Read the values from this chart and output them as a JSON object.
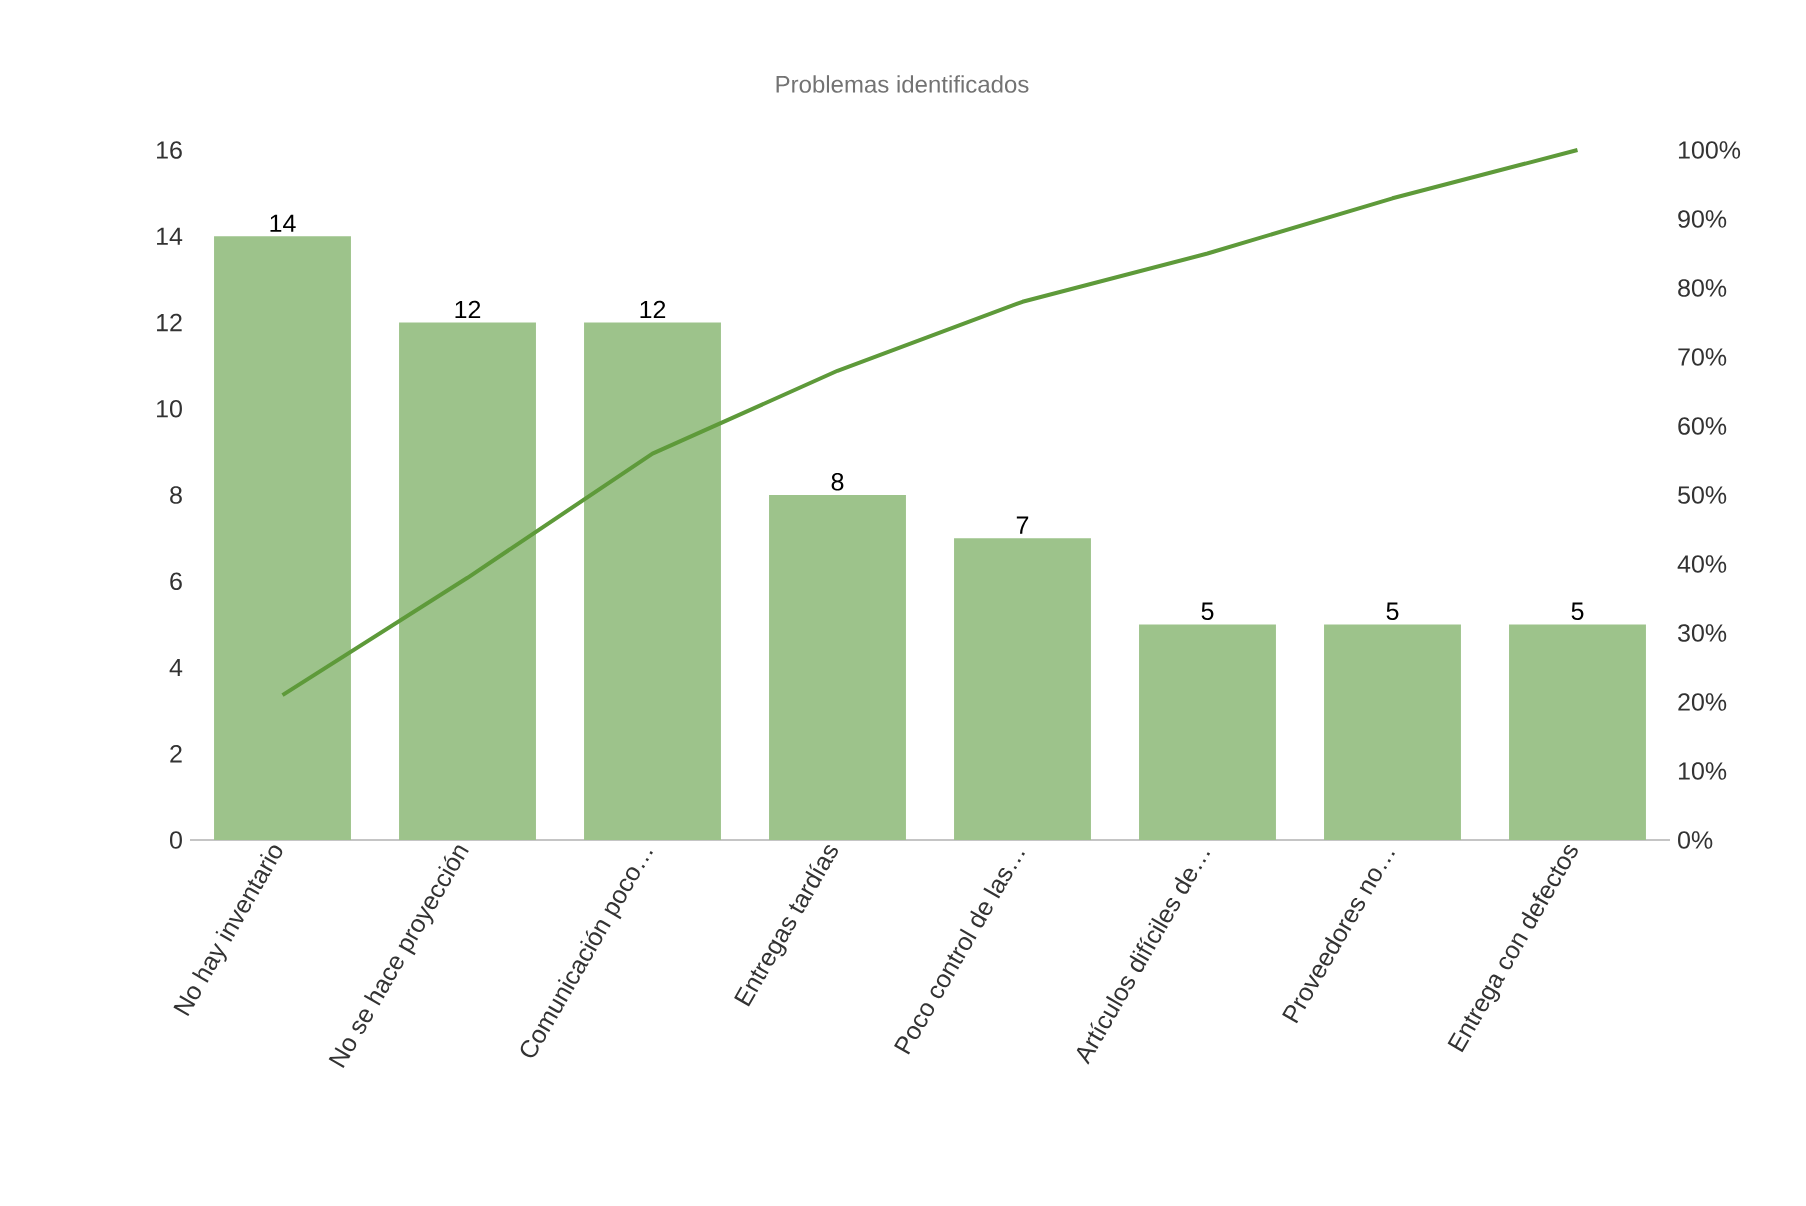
{
  "chart_data": {
    "type": "bar",
    "title": "Problemas identificados",
    "categories": [
      "No hay inventario",
      "No se hace proyección",
      "Comunicación poco…",
      "Entregas tardías",
      "Poco control de las…",
      "Artículos difíciles de…",
      "Proveedores no…",
      "Entrega con defectos"
    ],
    "series": [
      {
        "color": "#9dc38b",
        "values": [
          14,
          12,
          12,
          8,
          7,
          5,
          5,
          5
        ],
        "value_labels": [
          "14",
          "12",
          "12",
          "8",
          "7",
          "5",
          "5",
          "5"
        ]
      },
      {
        "type": "line",
        "axis": "y2",
        "color": "#5e9a3a",
        "values": [
          21,
          38,
          56,
          68,
          78,
          85,
          93,
          100
        ]
      }
    ],
    "ylim": [
      0,
      16
    ],
    "yticks": [
      0,
      2,
      4,
      6,
      8,
      10,
      12,
      14,
      16
    ],
    "y2lim": [
      0,
      100
    ],
    "y2ticks": [
      {
        "value": 0,
        "label": "0%"
      },
      {
        "value": 10,
        "label": "10%"
      },
      {
        "value": 20,
        "label": "20%"
      },
      {
        "value": 30,
        "label": "30%"
      },
      {
        "value": 40,
        "label": "40%"
      },
      {
        "value": 50,
        "label": "50%"
      },
      {
        "value": 60,
        "label": "60%"
      },
      {
        "value": 70,
        "label": "70%"
      },
      {
        "value": 80,
        "label": "80%"
      },
      {
        "value": 90,
        "label": "90%"
      },
      {
        "value": 100,
        "label": "100%"
      }
    ]
  }
}
